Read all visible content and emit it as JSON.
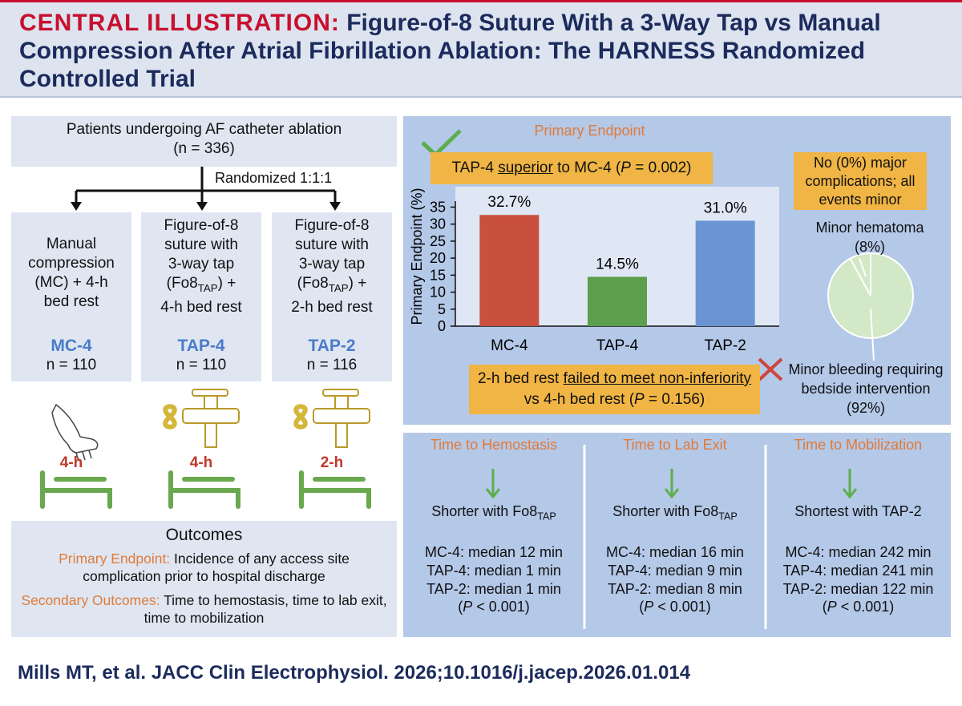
{
  "header": {
    "label": "CENTRAL ILLUSTRATION:",
    "title": "Figure-of-8 Suture With a 3-Way Tap vs Manual Compression After Atrial Fibrillation Ablation: The HARNESS Randomized Controlled Trial"
  },
  "flow": {
    "population": [
      "Patients undergoing AF catheter ablation",
      "(n = 336)"
    ],
    "randomization": "Randomized 1:1:1",
    "arms": [
      {
        "description": [
          [
            {
              "text": "Manual"
            }
          ],
          [
            {
              "text": "compression"
            }
          ],
          [
            {
              "text": "(MC) + 4-h"
            }
          ],
          [
            {
              "text": "bed rest"
            }
          ]
        ],
        "name": "MC-4",
        "n": "n = 110",
        "rest": "4-h"
      },
      {
        "description": [
          [
            {
              "text": "Figure-of-8"
            }
          ],
          [
            {
              "text": "suture with"
            }
          ],
          [
            {
              "text": "3-way tap"
            }
          ],
          [
            {
              "text": "(Fo8"
            },
            {
              "text": "TAP",
              "sub": true
            },
            {
              "text": ") +"
            }
          ],
          [
            {
              "text": "4-h bed rest"
            }
          ]
        ],
        "name": "TAP-4",
        "n": "n = 110",
        "rest": "4-h"
      },
      {
        "description": [
          [
            {
              "text": "Figure-of-8"
            }
          ],
          [
            {
              "text": "suture with"
            }
          ],
          [
            {
              "text": "3-way tap"
            }
          ],
          [
            {
              "text": "(Fo8"
            },
            {
              "text": "TAP",
              "sub": true
            },
            {
              "text": ") +"
            }
          ],
          [
            {
              "text": "2-h bed rest"
            }
          ]
        ],
        "name": "TAP-2",
        "n": "n = 116",
        "rest": "2-h"
      }
    ]
  },
  "outcomes": {
    "title": "Outcomes",
    "primary": {
      "label": "Primary Endpoint:",
      "text": "Incidence of any access site complication prior to hospital discharge"
    },
    "secondary": {
      "label": "Secondary Outcomes:",
      "text": "Time to hemostasis, time to lab exit, time to mobilization"
    }
  },
  "primary_endpoint": {
    "superiority": [
      {
        "text": "TAP-4 "
      },
      {
        "text": "superior",
        "u": true
      },
      {
        "text": " to MC-4 ("
      },
      {
        "text": "P",
        "i": true
      },
      {
        "text": " = 0.002)"
      }
    ],
    "noninferiority": [
      {
        "text": "2-h bed rest "
      },
      {
        "text": "failed to meet non-inferiority",
        "u": true
      },
      {
        "text": " vs 4-h bed rest ("
      },
      {
        "text": "P",
        "i": true
      },
      {
        "text": " = 0.156)"
      }
    ],
    "complications_note": "No (0%) major complications; all events minor"
  },
  "chart_data": [
    {
      "type": "bar",
      "title": "Primary Endpoint",
      "y_label": "Primary Endpoint (%)",
      "categories": [
        "MC-4",
        "TAP-4",
        "TAP-2"
      ],
      "values": [
        32.7,
        14.5,
        31.0
      ],
      "value_labels": [
        "32.7%",
        "14.5%",
        "31.0%"
      ],
      "colors": [
        "#c9503c",
        "#5b9e4b",
        "#6a95d2"
      ],
      "ylim": [
        0,
        41
      ],
      "yticks": [
        0,
        5,
        10,
        15,
        20,
        25,
        30,
        35
      ]
    },
    {
      "type": "pie",
      "categories": [
        "Minor hematoma",
        "Minor bleeding requiring bedside intervention"
      ],
      "values": [
        8,
        92
      ],
      "value_labels": [
        "(8%)",
        "(92%)"
      ],
      "colors": [
        "#d3e8c6",
        "#d3e8c6"
      ]
    }
  ],
  "secondary": [
    {
      "title": "Time to Hemostasis",
      "result": [
        {
          "text": "Shorter with Fo8"
        },
        {
          "text": "TAP",
          "sub": true
        }
      ],
      "medians": [
        "MC-4: median 12 min",
        "TAP-4: median 1 min",
        "TAP-2: median 1 min"
      ],
      "p": [
        {
          "text": "("
        },
        {
          "text": "P",
          "i": true
        },
        {
          "text": " < 0.001)"
        }
      ]
    },
    {
      "title": "Time to Lab Exit",
      "result": [
        {
          "text": "Shorter with Fo8"
        },
        {
          "text": "TAP",
          "sub": true
        }
      ],
      "medians": [
        "MC-4: median 16 min",
        "TAP-4: median 9 min",
        "TAP-2: median 8 min"
      ],
      "p": [
        {
          "text": "("
        },
        {
          "text": "P",
          "i": true
        },
        {
          "text": " < 0.001)"
        }
      ]
    },
    {
      "title": "Time to Mobilization",
      "result": [
        {
          "text": "Shortest with TAP-2"
        }
      ],
      "medians": [
        "MC-4: median 242 min",
        "TAP-4: median 241 min",
        "TAP-2: median 122 min"
      ],
      "p": [
        {
          "text": "("
        },
        {
          "text": "P",
          "i": true
        },
        {
          "text": " < 0.001)"
        }
      ]
    }
  ],
  "citation": "Mills MT, et al. JACC Clin Electrophysiol. 2026;10.1016/j.jacep.2026.01.014"
}
